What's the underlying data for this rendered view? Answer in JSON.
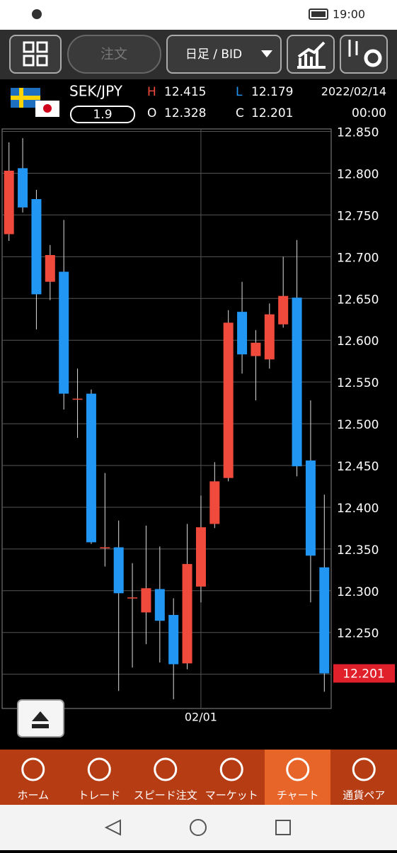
{
  "status_bar": {
    "time": "19:00"
  },
  "toolbar": {
    "order_button": "注文",
    "timeframe": "日足 / BID"
  },
  "quote": {
    "pair": "SEK/JPY",
    "spread": "1.9",
    "high_label": "H",
    "high": "12.415",
    "low_label": "L",
    "low": "12.179",
    "open_label": "O",
    "open": "12.328",
    "close_label": "C",
    "close": "12.201",
    "date": "2022/02/14",
    "time": "00:00"
  },
  "chart_data": {
    "type": "candlestick",
    "categories": [
      null,
      null,
      null,
      null,
      null,
      null,
      null,
      null,
      null,
      null,
      null,
      null,
      null,
      null,
      "02/01",
      null,
      null,
      null,
      null,
      null,
      null,
      null,
      null,
      null
    ],
    "open": [
      12.727,
      12.806,
      12.769,
      12.67,
      12.682,
      12.53,
      12.536,
      12.352,
      12.352,
      12.292,
      12.274,
      12.302,
      12.271,
      12.213,
      12.305,
      12.38,
      12.435,
      12.634,
      12.581,
      12.577,
      12.619,
      12.651,
      12.456,
      12.328
    ],
    "high": [
      12.837,
      12.842,
      12.78,
      12.714,
      12.744,
      12.566,
      12.541,
      12.441,
      12.384,
      12.333,
      12.378,
      12.353,
      12.291,
      12.38,
      12.414,
      12.454,
      12.636,
      12.67,
      12.612,
      12.644,
      12.7,
      12.72,
      12.528,
      12.415
    ],
    "low": [
      12.719,
      12.753,
      12.613,
      12.648,
      12.517,
      12.483,
      12.356,
      12.329,
      12.18,
      12.208,
      12.236,
      12.214,
      12.17,
      12.206,
      12.286,
      12.375,
      12.431,
      12.56,
      12.528,
      12.566,
      12.615,
      12.437,
      12.286,
      12.179
    ],
    "close": [
      12.803,
      12.759,
      12.655,
      12.702,
      12.536,
      12.53,
      12.358,
      12.352,
      12.297,
      12.292,
      12.303,
      12.264,
      12.212,
      12.332,
      12.376,
      12.431,
      12.621,
      12.583,
      12.597,
      12.631,
      12.653,
      12.449,
      12.342,
      12.201
    ],
    "up_color": "#f04a3c",
    "down_color": "#2196f3",
    "ylim": [
      12.159,
      12.853
    ],
    "yticks": [
      {
        "value": 12.2,
        "label": "12.200"
      },
      {
        "value": 12.25,
        "label": "12.250"
      },
      {
        "value": 12.3,
        "label": "12.300"
      },
      {
        "value": 12.35,
        "label": "12.350"
      },
      {
        "value": 12.4,
        "label": "12.400"
      },
      {
        "value": 12.45,
        "label": "12.450"
      },
      {
        "value": 12.5,
        "label": "12.500"
      },
      {
        "value": 12.55,
        "label": "12.550"
      },
      {
        "value": 12.6,
        "label": "12.600"
      },
      {
        "value": 12.65,
        "label": "12.650"
      },
      {
        "value": 12.7,
        "label": "12.700"
      },
      {
        "value": 12.75,
        "label": "12.750"
      },
      {
        "value": 12.8,
        "label": "12.800"
      },
      {
        "value": 12.85,
        "label": "12.850"
      }
    ],
    "grid": true,
    "last_price": 12.201,
    "last_price_color": "#e0202a"
  },
  "bottom_nav": [
    "ホーム",
    "トレード",
    "スピード注文",
    "マーケット",
    "チャート",
    "通貨ペア"
  ]
}
